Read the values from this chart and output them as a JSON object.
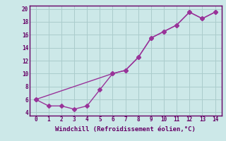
{
  "xlabel": "Windchill (Refroidissement éolien,°C)",
  "line1_x": [
    0,
    1,
    2,
    3,
    4,
    5,
    6,
    7,
    8,
    9,
    10,
    11,
    12,
    13,
    14
  ],
  "line1_y": [
    6,
    5,
    5,
    4.5,
    5,
    7.5,
    10,
    10.5,
    12.5,
    15.5,
    16.5,
    17.5,
    19.5,
    18.5,
    19.5
  ],
  "line2_x": [
    0,
    6,
    7,
    8,
    9,
    10,
    11,
    12,
    13,
    14
  ],
  "line2_y": [
    6,
    10,
    10.5,
    12.5,
    15.5,
    16.5,
    17.5,
    19.5,
    18.5,
    19.5
  ],
  "line_color": "#993399",
  "bg_color": "#cce8e8",
  "grid_color": "#aacccc",
  "axis_color": "#660066",
  "text_color": "#660066",
  "xlim": [
    -0.5,
    14.5
  ],
  "ylim": [
    3.5,
    20.5
  ],
  "xticks": [
    0,
    1,
    2,
    3,
    4,
    5,
    6,
    7,
    8,
    9,
    10,
    11,
    12,
    13,
    14
  ],
  "yticks": [
    4,
    6,
    8,
    10,
    12,
    14,
    16,
    18,
    20
  ],
  "marker": "D",
  "markersize": 3.0,
  "linewidth": 1.0
}
